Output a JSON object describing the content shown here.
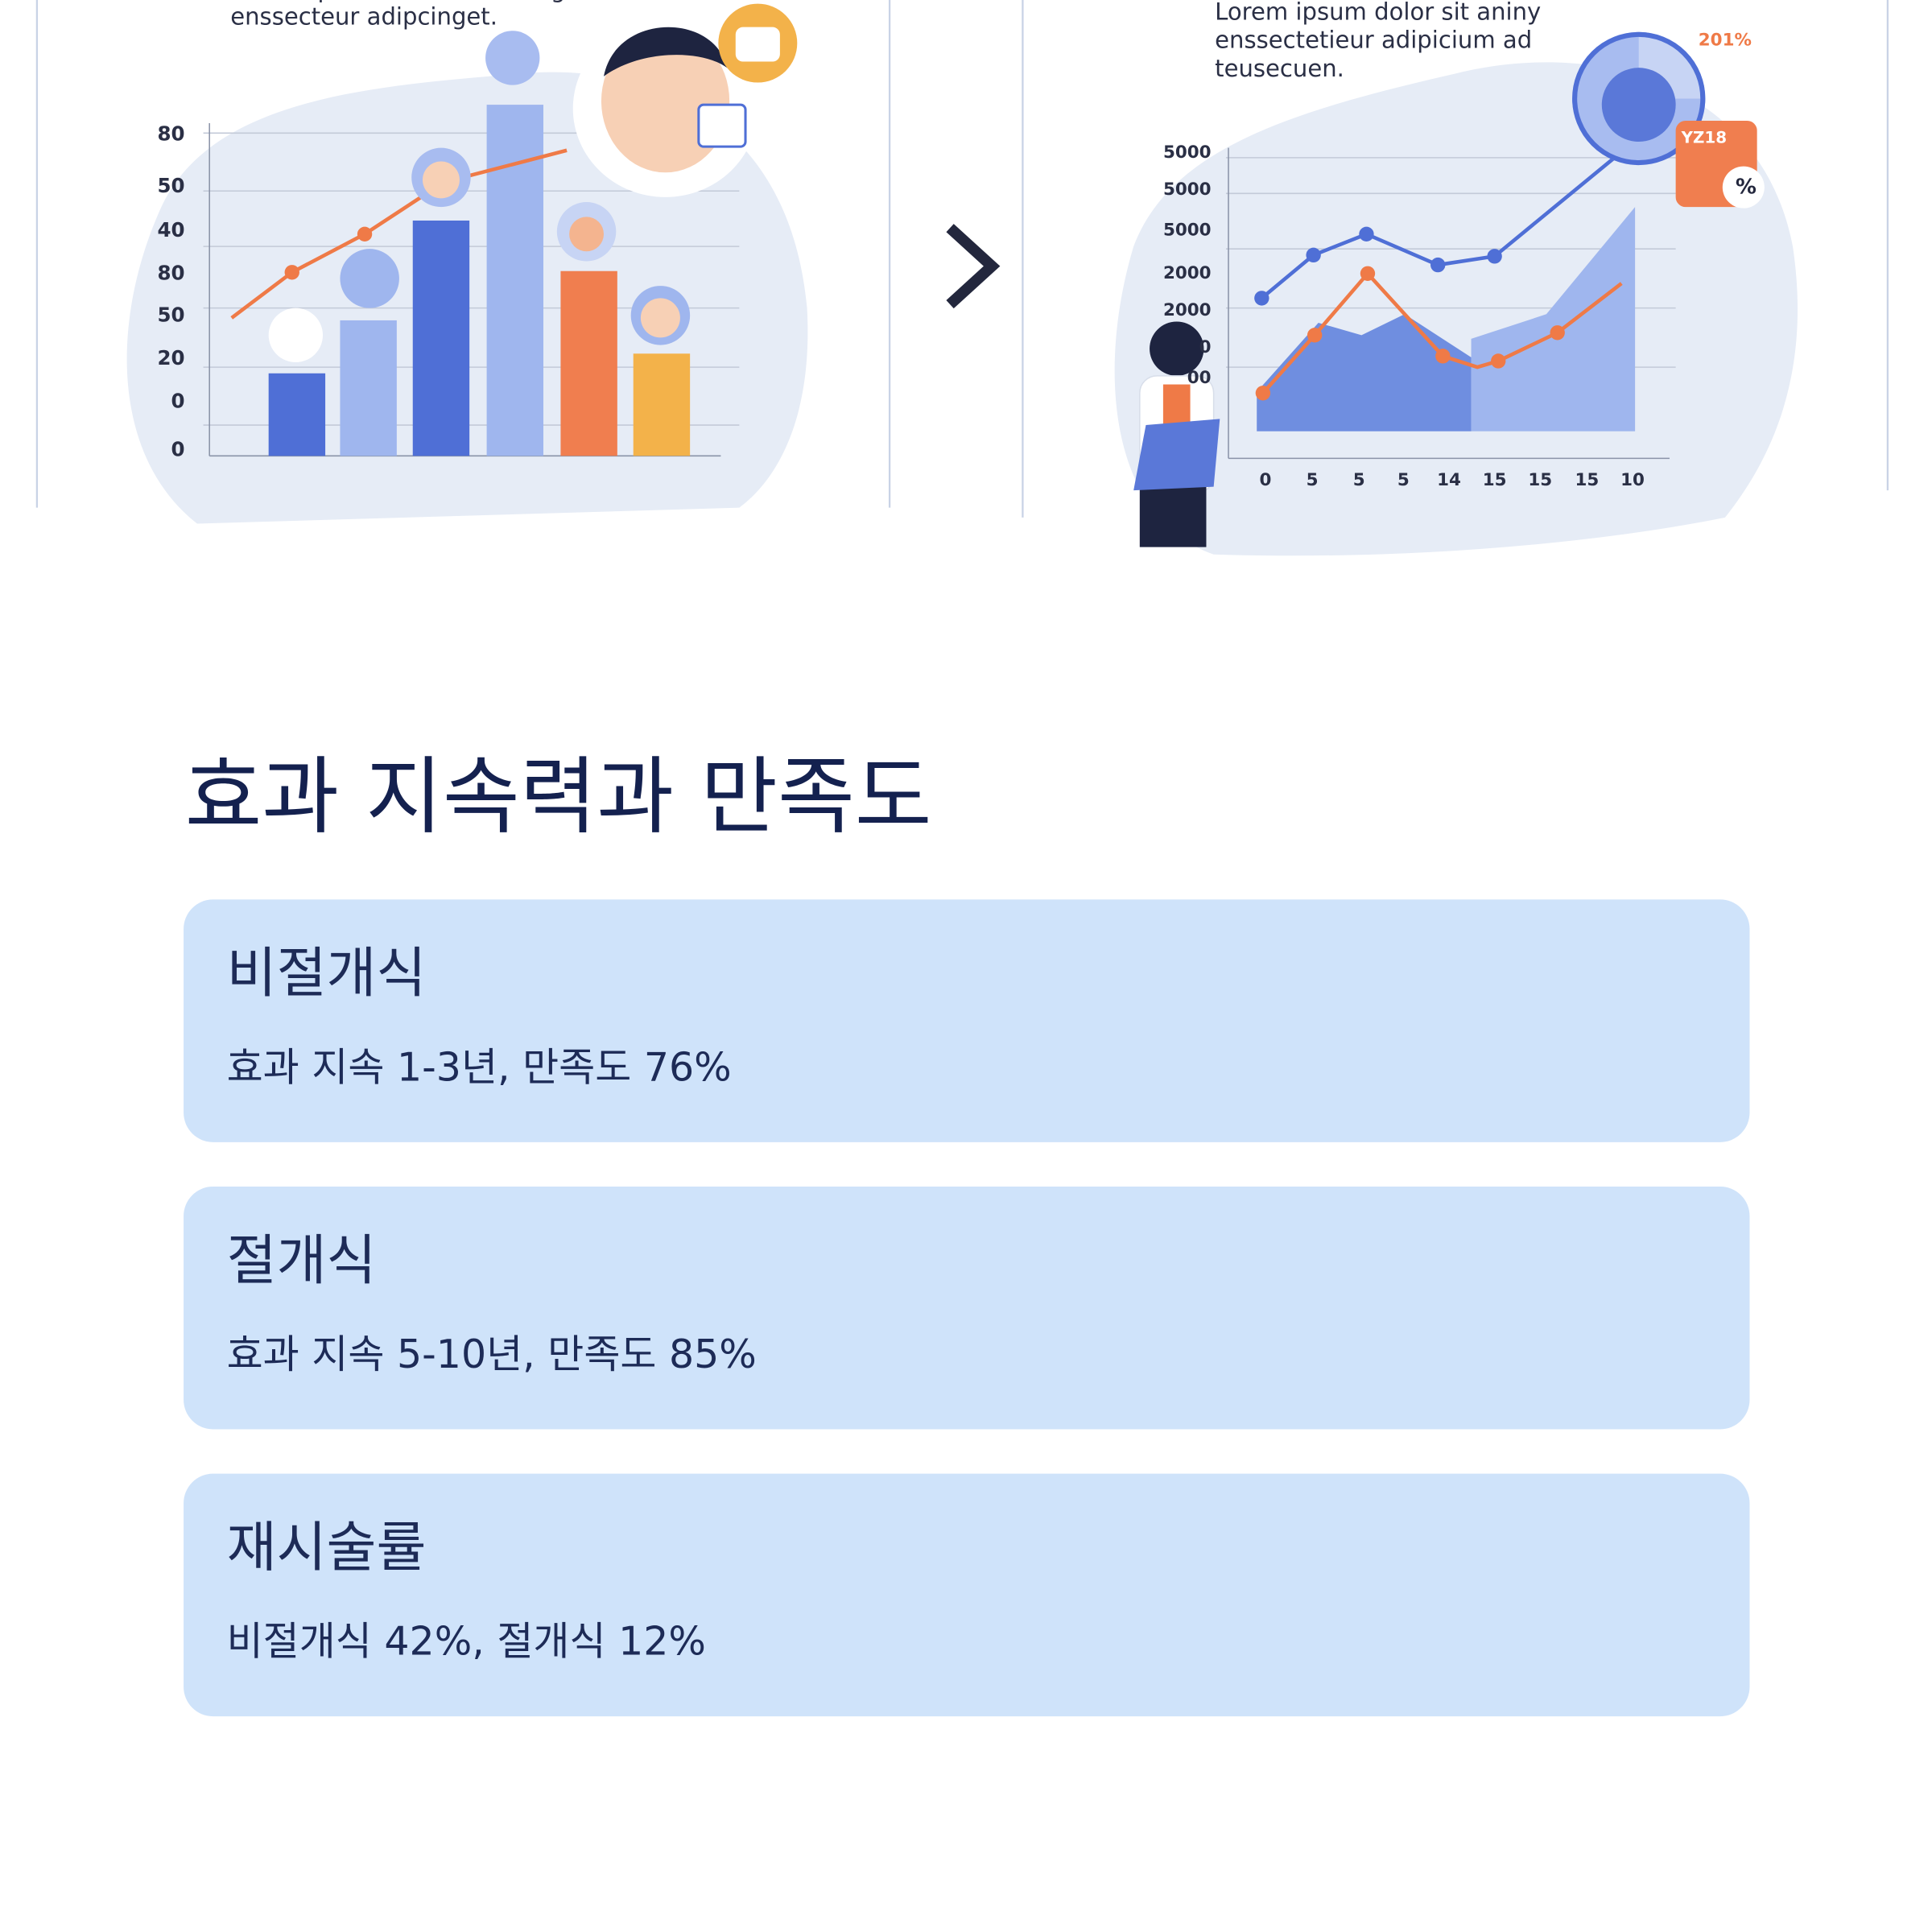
{
  "illustration": {
    "left": {
      "caption": [
        "Lorem ipsum dolor sit aming",
        "enssecteur adipcinget."
      ],
      "y_labels": [
        "80",
        "50",
        "40",
        "80",
        "50",
        "20",
        "0",
        "0"
      ]
    },
    "right": {
      "caption": [
        "Lorem ipsum dolor sit aniny",
        "enssectetieur adipicium ad",
        "teusecuen."
      ],
      "badges": [
        "201%",
        "YZ18",
        "%"
      ],
      "y_labels": [
        "5000",
        "5000",
        "5000",
        "2000",
        "2000",
        "0",
        "00"
      ],
      "x_labels": [
        "0",
        "5",
        "5",
        "5",
        "14",
        "15",
        "15",
        "15",
        "10"
      ]
    }
  },
  "section": {
    "title": "효과 지속력과 만족도",
    "cards": [
      {
        "title": "비절개식",
        "text": "효과 지속 1-3년, 만족도 76%"
      },
      {
        "title": "절개식",
        "text": "효과 지속 5-10년, 만족도 85%"
      },
      {
        "title": "재시술률",
        "text": "비절개식 42%, 절개식 12%"
      }
    ]
  }
}
